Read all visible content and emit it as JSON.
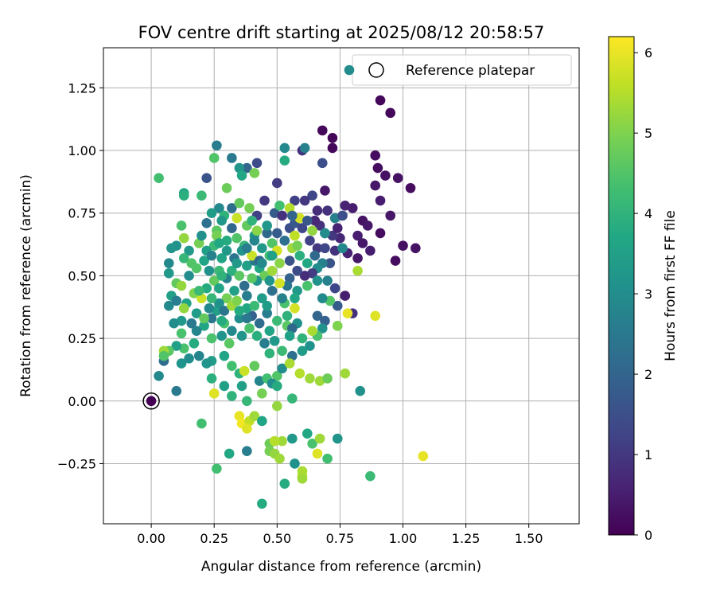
{
  "chart_data": {
    "type": "scatter",
    "title": "FOV centre drift starting at 2025/08/12 20:58:57",
    "xlabel": "Angular distance from reference (arcmin)",
    "ylabel": "Rotation from reference (arcmin)",
    "xlim": [
      -0.19,
      1.7
    ],
    "ylim": [
      -0.49,
      1.41
    ],
    "xticks": [
      "0.00",
      "0.25",
      "0.50",
      "0.75",
      "1.00",
      "1.25",
      "1.50"
    ],
    "yticks": [
      "−0.25",
      "0.00",
      "0.25",
      "0.50",
      "0.75",
      "1.00",
      "1.25"
    ],
    "grid": true,
    "legend": {
      "placement": "top-right",
      "entries": [
        "Reference platepar"
      ]
    },
    "colorbar": {
      "label": "Hours from first FF file",
      "range": [
        0,
        6.2
      ],
      "ticks": [
        "0",
        "1",
        "2",
        "3",
        "4",
        "5",
        "6"
      ],
      "colormap": "viridis"
    },
    "reference_point": {
      "x": 0.0,
      "y": 0.0
    },
    "points": [
      [
        0.68,
        1.08,
        0.1
      ],
      [
        0.72,
        1.05,
        0.1
      ],
      [
        0.72,
        1.01,
        0.1
      ],
      [
        0.91,
        1.2,
        0.1
      ],
      [
        0.95,
        1.15,
        0.1
      ],
      [
        0.89,
        0.98,
        0.2
      ],
      [
        0.9,
        0.93,
        0.2
      ],
      [
        0.93,
        0.9,
        0.3
      ],
      [
        0.98,
        0.89,
        0.3
      ],
      [
        1.03,
        0.85,
        0.2
      ],
      [
        0.89,
        0.86,
        0.4
      ],
      [
        0.91,
        0.8,
        0.5
      ],
      [
        0.95,
        0.74,
        0.4
      ],
      [
        0.91,
        0.67,
        0.2
      ],
      [
        0.97,
        0.56,
        0.2
      ],
      [
        1.0,
        0.62,
        0.3
      ],
      [
        1.05,
        0.61,
        0.3
      ],
      [
        0.84,
        0.72,
        0.3
      ],
      [
        0.86,
        0.7,
        0.4
      ],
      [
        0.8,
        0.77,
        0.5
      ],
      [
        0.77,
        0.78,
        0.6
      ],
      [
        0.82,
        0.66,
        0.5
      ],
      [
        0.78,
        0.59,
        0.6
      ],
      [
        0.84,
        0.63,
        0.4
      ],
      [
        0.87,
        0.6,
        0.5
      ],
      [
        0.82,
        0.57,
        0.4
      ],
      [
        0.75,
        0.65,
        0.7
      ],
      [
        0.72,
        0.66,
        1.0
      ],
      [
        0.69,
        0.67,
        1.2
      ],
      [
        0.67,
        0.7,
        0.9
      ],
      [
        0.65,
        0.72,
        0.7
      ],
      [
        0.66,
        0.76,
        0.8
      ],
      [
        0.7,
        0.76,
        0.9
      ],
      [
        0.69,
        0.84,
        0.4
      ],
      [
        0.68,
        0.95,
        1.5
      ],
      [
        0.6,
        1.0,
        0.9
      ],
      [
        0.61,
        1.01,
        2.7
      ],
      [
        0.53,
        1.01,
        2.9
      ],
      [
        0.53,
        0.96,
        3.8
      ],
      [
        0.64,
        0.82,
        1.3
      ],
      [
        0.61,
        0.8,
        1.0
      ],
      [
        0.57,
        0.8,
        1.2
      ],
      [
        0.5,
        0.87,
        1.1
      ],
      [
        0.49,
        0.75,
        1.8
      ],
      [
        0.52,
        0.74,
        0.9
      ],
      [
        0.45,
        0.8,
        1.0
      ],
      [
        0.42,
        0.74,
        1.2
      ],
      [
        0.42,
        0.95,
        1.4
      ],
      [
        0.38,
        0.93,
        2.0
      ],
      [
        0.35,
        0.93,
        3.2
      ],
      [
        0.32,
        0.97,
        2.5
      ],
      [
        0.26,
        1.02,
        2.6
      ],
      [
        0.25,
        0.97,
        4.5
      ],
      [
        0.22,
        0.89,
        1.6
      ],
      [
        0.36,
        0.9,
        3.7
      ],
      [
        0.41,
        0.91,
        4.9
      ],
      [
        0.3,
        0.85,
        4.8
      ],
      [
        0.27,
        0.77,
        2.9
      ],
      [
        0.24,
        0.75,
        3.4
      ],
      [
        0.2,
        0.82,
        4.2
      ],
      [
        0.13,
        0.83,
        3.6
      ],
      [
        0.13,
        0.82,
        3.9
      ],
      [
        0.03,
        0.89,
        4.3
      ],
      [
        0.32,
        0.77,
        2.2
      ],
      [
        0.29,
        0.74,
        4.0
      ],
      [
        0.34,
        0.73,
        5.7
      ],
      [
        0.38,
        0.7,
        4.7
      ],
      [
        0.41,
        0.66,
        3.3
      ],
      [
        0.46,
        0.67,
        2.1
      ],
      [
        0.5,
        0.67,
        1.8
      ],
      [
        0.55,
        0.69,
        1.5
      ],
      [
        0.57,
        0.71,
        1.7
      ],
      [
        0.59,
        0.73,
        5.8
      ],
      [
        0.6,
        0.69,
        1.3
      ],
      [
        0.63,
        0.64,
        1.2
      ],
      [
        0.66,
        0.61,
        1.0
      ],
      [
        0.69,
        0.61,
        1.3
      ],
      [
        0.73,
        0.6,
        0.9
      ],
      [
        0.76,
        0.61,
        2.9
      ],
      [
        0.71,
        0.55,
        1.6
      ],
      [
        0.68,
        0.55,
        2.7
      ],
      [
        0.66,
        0.53,
        3.0
      ],
      [
        0.64,
        0.51,
        1.1
      ],
      [
        0.61,
        0.5,
        0.8
      ],
      [
        0.58,
        0.52,
        1.4
      ],
      [
        0.55,
        0.49,
        1.9
      ],
      [
        0.54,
        0.46,
        2.4
      ],
      [
        0.58,
        0.44,
        3.3
      ],
      [
        0.62,
        0.46,
        4.4
      ],
      [
        0.66,
        0.48,
        3.1
      ],
      [
        0.7,
        0.48,
        2.7
      ],
      [
        0.73,
        0.45,
        1.3
      ],
      [
        0.74,
        0.38,
        1.8
      ],
      [
        0.71,
        0.4,
        4.5
      ],
      [
        0.68,
        0.41,
        2.9
      ],
      [
        0.77,
        0.42,
        0.5
      ],
      [
        0.82,
        0.52,
        5.4
      ],
      [
        0.8,
        0.35,
        0.9
      ],
      [
        0.78,
        0.35,
        6.0
      ],
      [
        0.74,
        0.3,
        5.0
      ],
      [
        0.69,
        0.32,
        1.9
      ],
      [
        0.66,
        0.34,
        2.0
      ],
      [
        0.68,
        0.29,
        3.1
      ],
      [
        0.66,
        0.26,
        4.4
      ],
      [
        0.64,
        0.28,
        5.4
      ],
      [
        0.6,
        0.25,
        4.0
      ],
      [
        0.63,
        0.22,
        3.1
      ],
      [
        0.6,
        0.2,
        3.4
      ],
      [
        0.56,
        0.18,
        2.3
      ],
      [
        0.52,
        0.2,
        4.2
      ],
      [
        0.49,
        0.24,
        3.3
      ],
      [
        0.47,
        0.28,
        3.6
      ],
      [
        0.5,
        0.32,
        4.2
      ],
      [
        0.54,
        0.34,
        4.0
      ],
      [
        0.57,
        0.37,
        5.8
      ],
      [
        0.58,
        0.31,
        3.1
      ],
      [
        0.54,
        0.3,
        4.6
      ],
      [
        0.46,
        0.35,
        2.6
      ],
      [
        0.43,
        0.31,
        2.2
      ],
      [
        0.4,
        0.34,
        1.9
      ],
      [
        0.38,
        0.37,
        3.7
      ],
      [
        0.35,
        0.33,
        3.0
      ],
      [
        0.32,
        0.28,
        2.9
      ],
      [
        0.29,
        0.31,
        4.4
      ],
      [
        0.26,
        0.36,
        3.5
      ],
      [
        0.24,
        0.33,
        2.4
      ],
      [
        0.21,
        0.3,
        3.6
      ],
      [
        0.18,
        0.28,
        2.8
      ],
      [
        0.17,
        0.23,
        3.8
      ],
      [
        0.13,
        0.21,
        4.4
      ],
      [
        0.1,
        0.22,
        3.5
      ],
      [
        0.07,
        0.2,
        4.6
      ],
      [
        0.05,
        0.2,
        5.3
      ],
      [
        0.05,
        0.16,
        2.2
      ],
      [
        0.03,
        0.1,
        2.9
      ],
      [
        0.1,
        0.04,
        2.5
      ],
      [
        0.12,
        0.15,
        3.2
      ],
      [
        0.15,
        0.17,
        3.0
      ],
      [
        0.19,
        0.18,
        2.8
      ],
      [
        0.24,
        0.16,
        3.4
      ],
      [
        0.29,
        0.18,
        3.6
      ],
      [
        0.32,
        0.14,
        4.3
      ],
      [
        0.35,
        0.11,
        4.0
      ],
      [
        0.37,
        0.12,
        5.7
      ],
      [
        0.41,
        0.14,
        4.7
      ],
      [
        0.43,
        0.08,
        2.8
      ],
      [
        0.46,
        0.09,
        4.3
      ],
      [
        0.5,
        0.1,
        4.5
      ],
      [
        0.52,
        0.13,
        3.0
      ],
      [
        0.55,
        0.15,
        5.4
      ],
      [
        0.59,
        0.11,
        5.5
      ],
      [
        0.63,
        0.09,
        5.3
      ],
      [
        0.67,
        0.08,
        5.3
      ],
      [
        0.7,
        0.09,
        4.8
      ],
      [
        0.77,
        0.11,
        5.3
      ],
      [
        0.83,
        0.04,
        3.1
      ],
      [
        0.29,
        0.06,
        3.5
      ],
      [
        0.32,
        0.02,
        4.0
      ],
      [
        0.36,
        0.06,
        3.5
      ],
      [
        0.38,
        0.0,
        4.1
      ],
      [
        0.44,
        0.03,
        4.9
      ],
      [
        0.48,
        0.07,
        3.0
      ],
      [
        0.5,
        0.06,
        3.8
      ],
      [
        0.56,
        0.01,
        4.1
      ],
      [
        0.25,
        0.03,
        5.9
      ],
      [
        0.24,
        0.09,
        3.9
      ],
      [
        0.22,
        0.15,
        3.2
      ],
      [
        0.5,
        -0.02,
        5.2
      ],
      [
        0.35,
        -0.06,
        6.0
      ],
      [
        0.36,
        -0.09,
        6.1
      ],
      [
        0.39,
        -0.08,
        5.6
      ],
      [
        0.38,
        -0.11,
        5.9
      ],
      [
        0.41,
        -0.06,
        5.3
      ],
      [
        0.44,
        -0.08,
        3.6
      ],
      [
        0.49,
        -0.16,
        5.4
      ],
      [
        0.47,
        -0.17,
        4.8
      ],
      [
        0.47,
        -0.2,
        4.9
      ],
      [
        0.49,
        -0.21,
        5.2
      ],
      [
        0.51,
        -0.23,
        5.3
      ],
      [
        0.56,
        -0.15,
        3.3
      ],
      [
        0.52,
        -0.16,
        5.3
      ],
      [
        0.49,
        -0.16,
        5.5
      ],
      [
        0.57,
        -0.25,
        3.1
      ],
      [
        0.6,
        -0.3,
        5.6
      ],
      [
        0.6,
        -0.28,
        5.4
      ],
      [
        0.62,
        -0.13,
        3.7
      ],
      [
        0.64,
        -0.17,
        4.4
      ],
      [
        0.66,
        -0.21,
        5.9
      ],
      [
        0.67,
        -0.15,
        5.3
      ],
      [
        0.7,
        -0.23,
        4.3
      ],
      [
        0.74,
        -0.15,
        3.2
      ],
      [
        0.6,
        -0.31,
        5.3
      ],
      [
        0.53,
        -0.33,
        3.8
      ],
      [
        0.44,
        -0.41,
        3.8
      ],
      [
        0.87,
        -0.3,
        4.2
      ],
      [
        1.08,
        -0.22,
        6.0
      ],
      [
        0.2,
        -0.09,
        4.3
      ],
      [
        0.26,
        -0.27,
        4.3
      ],
      [
        0.31,
        -0.21,
        3.7
      ],
      [
        0.38,
        -0.2,
        2.6
      ],
      [
        0.89,
        0.34,
        5.9
      ],
      [
        0.56,
        0.29,
        2.1
      ],
      [
        0.32,
        0.69,
        2.1
      ],
      [
        0.34,
        0.65,
        4.5
      ],
      [
        0.37,
        0.62,
        4.1
      ],
      [
        0.3,
        0.6,
        3.3
      ],
      [
        0.28,
        0.57,
        3.6
      ],
      [
        0.25,
        0.62,
        4.2
      ],
      [
        0.22,
        0.6,
        3.5
      ],
      [
        0.19,
        0.63,
        4.9
      ],
      [
        0.15,
        0.6,
        3.3
      ],
      [
        0.13,
        0.65,
        5.2
      ],
      [
        0.12,
        0.7,
        4.4
      ],
      [
        0.1,
        0.62,
        3.1
      ],
      [
        0.07,
        0.55,
        2.9
      ],
      [
        0.07,
        0.51,
        3.3
      ],
      [
        0.1,
        0.47,
        4.7
      ],
      [
        0.12,
        0.46,
        5.2
      ],
      [
        0.08,
        0.42,
        3.5
      ],
      [
        0.07,
        0.38,
        2.9
      ],
      [
        0.1,
        0.4,
        2.6
      ],
      [
        0.14,
        0.39,
        3.6
      ],
      [
        0.17,
        0.43,
        5.0
      ],
      [
        0.2,
        0.41,
        5.7
      ],
      [
        0.22,
        0.45,
        3.8
      ],
      [
        0.25,
        0.48,
        4.7
      ],
      [
        0.27,
        0.52,
        4.2
      ],
      [
        0.3,
        0.49,
        2.7
      ],
      [
        0.32,
        0.52,
        3.9
      ],
      [
        0.35,
        0.5,
        4.6
      ],
      [
        0.38,
        0.54,
        3.5
      ],
      [
        0.41,
        0.56,
        2.5
      ],
      [
        0.43,
        0.53,
        3.7
      ],
      [
        0.45,
        0.5,
        4.8
      ],
      [
        0.48,
        0.52,
        5.3
      ],
      [
        0.51,
        0.55,
        5.1
      ],
      [
        0.47,
        0.58,
        4.3
      ],
      [
        0.44,
        0.61,
        3.3
      ],
      [
        0.41,
        0.64,
        2.8
      ],
      [
        0.48,
        0.63,
        4.5
      ],
      [
        0.5,
        0.6,
        5.8
      ],
      [
        0.53,
        0.64,
        2.3
      ],
      [
        0.56,
        0.61,
        5.3
      ],
      [
        0.58,
        0.62,
        4.9
      ],
      [
        0.37,
        0.46,
        2.2
      ],
      [
        0.33,
        0.44,
        3.5
      ],
      [
        0.3,
        0.41,
        4.9
      ],
      [
        0.27,
        0.39,
        3.1
      ],
      [
        0.24,
        0.41,
        4.1
      ],
      [
        0.29,
        0.36,
        2.4
      ],
      [
        0.32,
        0.38,
        5.3
      ],
      [
        0.35,
        0.36,
        3.8
      ],
      [
        0.38,
        0.33,
        2.5
      ],
      [
        0.41,
        0.38,
        4.2
      ],
      [
        0.44,
        0.41,
        3.4
      ],
      [
        0.48,
        0.44,
        2.3
      ],
      [
        0.51,
        0.47,
        5.8
      ],
      [
        0.15,
        0.5,
        3.0
      ],
      [
        0.18,
        0.53,
        4.5
      ],
      [
        0.21,
        0.56,
        3.6
      ],
      [
        0.24,
        0.58,
        2.7
      ],
      [
        0.18,
        0.35,
        3.4
      ],
      [
        0.21,
        0.33,
        4.7
      ],
      [
        0.16,
        0.31,
        2.5
      ],
      [
        0.12,
        0.32,
        3.3
      ],
      [
        0.09,
        0.31,
        3.0
      ],
      [
        0.12,
        0.27,
        4.4
      ],
      [
        0.36,
        0.26,
        3.2
      ],
      [
        0.39,
        0.29,
        4.4
      ],
      [
        0.42,
        0.26,
        3.9
      ],
      [
        0.45,
        0.23,
        2.6
      ],
      [
        0.47,
        0.19,
        4.0
      ],
      [
        0.31,
        0.23,
        4.6
      ],
      [
        0.28,
        0.26,
        3.2
      ],
      [
        0.08,
        0.61,
        3.2
      ],
      [
        0.13,
        0.57,
        4.1
      ],
      [
        0.2,
        0.66,
        3.1
      ],
      [
        0.26,
        0.68,
        4.6
      ],
      [
        0.28,
        0.72,
        3.3
      ],
      [
        0.35,
        0.79,
        4.7
      ],
      [
        0.39,
        0.77,
        4.9
      ],
      [
        0.4,
        0.72,
        4.0
      ],
      [
        0.46,
        0.7,
        3.3
      ],
      [
        0.55,
        0.77,
        5.5
      ],
      [
        0.56,
        0.74,
        2.0
      ],
      [
        0.62,
        0.72,
        1.7
      ],
      [
        0.64,
        0.68,
        5.2
      ],
      [
        0.57,
        0.66,
        5.6
      ],
      [
        0.51,
        0.78,
        4.3
      ],
      [
        0.19,
        0.44,
        4.2
      ],
      [
        0.13,
        0.37,
        5.2
      ],
      [
        0.48,
        0.58,
        3.5
      ],
      [
        0.3,
        0.64,
        3.8
      ],
      [
        0.26,
        0.66,
        4.9
      ],
      [
        0.22,
        0.71,
        2.3
      ],
      [
        0.36,
        0.6,
        3.2
      ],
      [
        0.4,
        0.58,
        5.7
      ],
      [
        0.43,
        0.56,
        2.0
      ],
      [
        0.47,
        0.48,
        3.2
      ],
      [
        0.55,
        0.56,
        1.6
      ],
      [
        0.62,
        0.55,
        3.7
      ],
      [
        0.65,
        0.58,
        2.1
      ],
      [
        0.69,
        0.67,
        3.0
      ],
      [
        0.73,
        0.73,
        2.7
      ],
      [
        0.74,
        0.69,
        0.6
      ],
      [
        0.76,
        0.74,
        1.5
      ],
      [
        0.59,
        0.58,
        3.9
      ],
      [
        0.38,
        0.42,
        2.6
      ],
      [
        0.34,
        0.4,
        5.0
      ],
      [
        0.27,
        0.45,
        3.6
      ],
      [
        0.42,
        0.48,
        3.2
      ],
      [
        0.53,
        0.39,
        4.4
      ],
      [
        0.57,
        0.41,
        3.7
      ],
      [
        0.55,
        0.26,
        3.5
      ],
      [
        0.4,
        0.49,
        4.6
      ],
      [
        0.33,
        0.57,
        2.4
      ],
      [
        0.28,
        0.5,
        4.0
      ],
      [
        0.23,
        0.52,
        3.1
      ],
      [
        0.16,
        0.55,
        4.5
      ],
      [
        0.52,
        0.41,
        2.7
      ],
      [
        0.46,
        0.38,
        3.4
      ],
      [
        0.24,
        0.25,
        4.4
      ],
      [
        0.28,
        0.32,
        3.8
      ],
      [
        0.44,
        0.55,
        2.9
      ],
      [
        0.38,
        0.61,
        2.6
      ],
      [
        0.42,
        0.68,
        5.1
      ],
      [
        0.23,
        0.37,
        2.9
      ],
      [
        0.05,
        0.18,
        4.5
      ],
      [
        0.27,
        0.63,
        3.7
      ],
      [
        0.34,
        0.55,
        3.3
      ]
    ]
  }
}
